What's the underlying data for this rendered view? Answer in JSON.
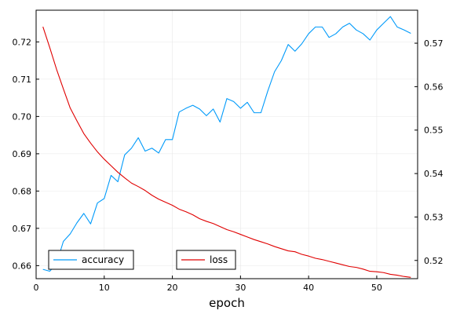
{
  "chart_data": {
    "type": "line",
    "title": "",
    "xlabel": "epoch",
    "ylabel_left": "",
    "ylabel_right": "",
    "xlim": [
      0,
      56
    ],
    "ylim_left": [
      0.6565,
      0.7285
    ],
    "ylim_right": [
      0.5158,
      0.5776
    ],
    "x_ticks": [
      0,
      10,
      20,
      30,
      40,
      50
    ],
    "y_ticks_left": [
      0.66,
      0.67,
      0.68,
      0.69,
      0.7,
      0.71,
      0.72
    ],
    "y_ticks_right": [
      0.52,
      0.53,
      0.54,
      0.55,
      0.56,
      0.57
    ],
    "grid": true,
    "x": [
      1,
      2,
      3,
      4,
      5,
      6,
      7,
      8,
      9,
      10,
      11,
      12,
      13,
      14,
      15,
      16,
      17,
      18,
      19,
      20,
      21,
      22,
      23,
      24,
      25,
      26,
      27,
      28,
      29,
      30,
      31,
      32,
      33,
      34,
      35,
      36,
      37,
      38,
      39,
      40,
      41,
      42,
      43,
      44,
      45,
      46,
      47,
      48,
      49,
      50,
      51,
      52,
      53,
      54,
      55
    ],
    "series": [
      {
        "name": "accuracy",
        "axis": "left",
        "color": "#009AFA",
        "values": [
          0.659,
          0.6585,
          0.6605,
          0.6665,
          0.6685,
          0.6715,
          0.674,
          0.6712,
          0.6768,
          0.678,
          0.6842,
          0.6825,
          0.6897,
          0.6915,
          0.6943,
          0.6907,
          0.6915,
          0.6902,
          0.6938,
          0.6938,
          0.7012,
          0.7022,
          0.703,
          0.702,
          0.7002,
          0.702,
          0.6985,
          0.7048,
          0.704,
          0.7022,
          0.7038,
          0.701,
          0.701,
          0.7068,
          0.712,
          0.715,
          0.7193,
          0.7175,
          0.7195,
          0.7222,
          0.724,
          0.724,
          0.7212,
          0.7222,
          0.724,
          0.725,
          0.7232,
          0.7222,
          0.7205,
          0.7232,
          0.725,
          0.7268,
          0.724,
          0.7232,
          0.7223
        ]
      },
      {
        "name": "loss",
        "axis": "right",
        "color": "#E00000",
        "values": [
          0.5738,
          0.569,
          0.564,
          0.5595,
          0.5551,
          0.5521,
          0.5492,
          0.547,
          0.545,
          0.5433,
          0.5418,
          0.5403,
          0.539,
          0.5378,
          0.537,
          0.5361,
          0.535,
          0.5341,
          0.5334,
          0.5327,
          0.5318,
          0.5312,
          0.5305,
          0.5296,
          0.529,
          0.5285,
          0.5278,
          0.5271,
          0.5266,
          0.526,
          0.5254,
          0.5248,
          0.5243,
          0.5238,
          0.5232,
          0.5227,
          0.5222,
          0.522,
          0.5214,
          0.521,
          0.5205,
          0.5202,
          0.5198,
          0.5194,
          0.519,
          0.5186,
          0.5184,
          0.518,
          0.5175,
          0.5174,
          0.5172,
          0.5168,
          0.5166,
          0.5163,
          0.5161
        ]
      }
    ],
    "legends": [
      {
        "name": "accuracy",
        "color": "#009AFA",
        "position": "bottom-left"
      },
      {
        "name": "loss",
        "color": "#E00000",
        "position": "bottom-center"
      }
    ]
  }
}
